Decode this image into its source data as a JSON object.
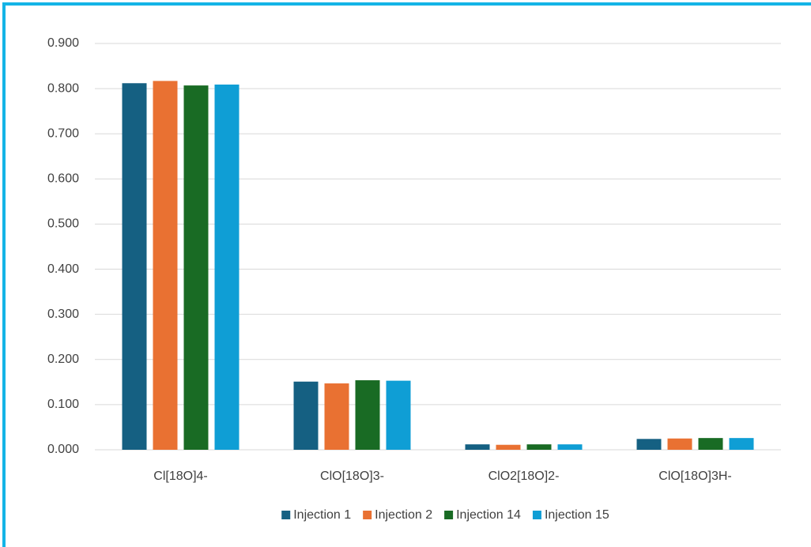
{
  "chart_data": {
    "type": "bar",
    "categories": [
      "Cl[18O]4-",
      "ClO[18O]3-",
      "ClO2[18O]2-",
      "ClO[18O]3H-"
    ],
    "series": [
      {
        "name": "Injection 1",
        "color": "#156082",
        "values": [
          0.812,
          0.151,
          0.012,
          0.024
        ]
      },
      {
        "name": "Injection 2",
        "color": "#e97132",
        "values": [
          0.817,
          0.147,
          0.011,
          0.025
        ]
      },
      {
        "name": "Injection 14",
        "color": "#196b24",
        "values": [
          0.807,
          0.154,
          0.012,
          0.026
        ]
      },
      {
        "name": "Injection 15",
        "color": "#0f9ed5",
        "values": [
          0.809,
          0.153,
          0.012,
          0.026
        ]
      }
    ],
    "ylim": [
      0,
      0.9
    ],
    "yticks": [
      {
        "value": 0,
        "label": "0.000"
      },
      {
        "value": 0.1,
        "label": "0.100"
      },
      {
        "value": 0.2,
        "label": "0.200"
      },
      {
        "value": 0.3,
        "label": "0.300"
      },
      {
        "value": 0.4,
        "label": "0.400"
      },
      {
        "value": 0.5,
        "label": "0.500"
      },
      {
        "value": 0.6,
        "label": "0.600"
      },
      {
        "value": 0.7,
        "label": "0.700"
      },
      {
        "value": 0.8,
        "label": "0.800"
      },
      {
        "value": 0.9,
        "label": "0.900"
      }
    ],
    "grid": true,
    "legend": "bottom"
  }
}
